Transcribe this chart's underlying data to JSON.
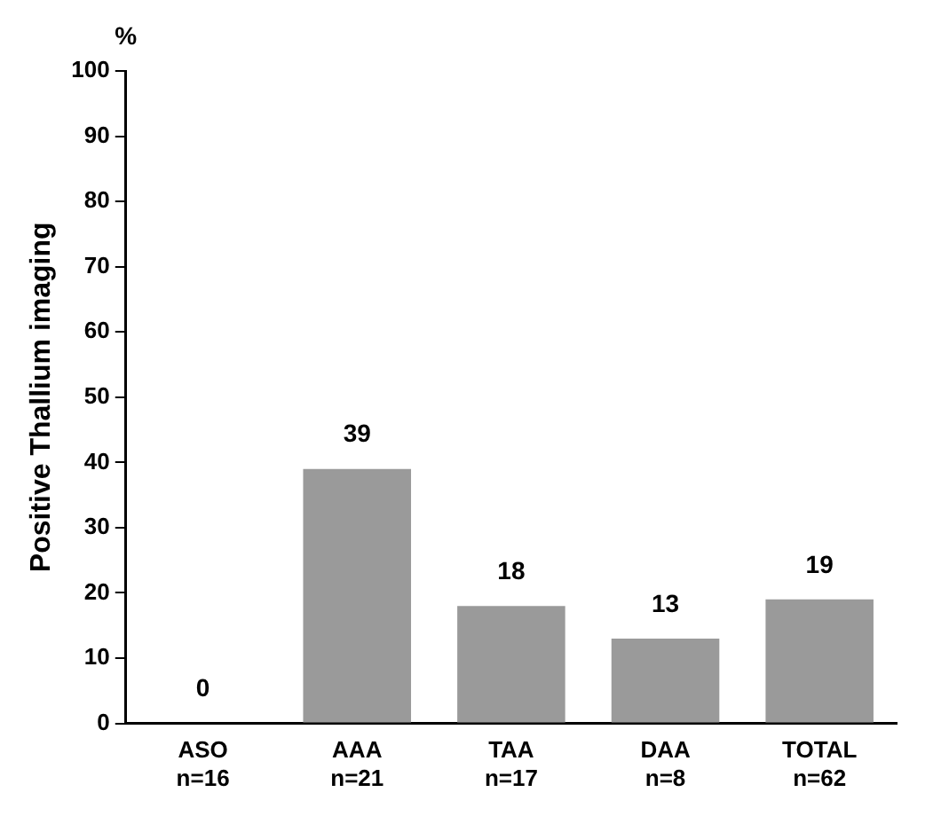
{
  "chart_data": {
    "type": "bar",
    "ylabel": "Positive Thallium imaging",
    "categories": [
      "ASO\nn=16",
      "AAA\nn=21",
      "TAA\nn=17",
      "DAA\nn=8",
      "TOTAL\nn=62"
    ],
    "values": [
      0,
      39,
      18,
      13,
      19
    ],
    "color": "#9a9a9a",
    "ylim": [
      0,
      100
    ],
    "yticks": [
      0,
      10,
      20,
      30,
      40,
      50,
      60,
      70,
      80,
      90,
      100
    ],
    "data_labels": true,
    "grid": false,
    "legend": false,
    "annotations": [
      "%"
    ]
  }
}
